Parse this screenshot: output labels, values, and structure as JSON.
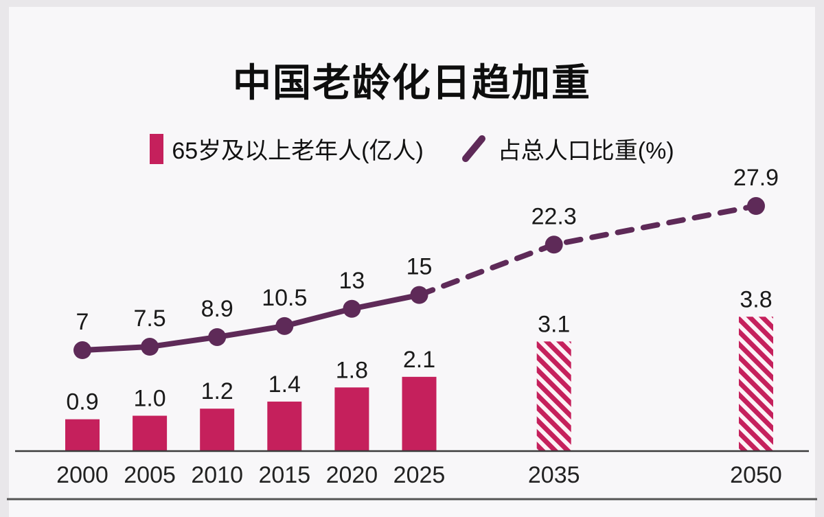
{
  "chart_data": {
    "type": "bar",
    "title": "中国老龄化日趋加重",
    "categories": [
      "2000",
      "2005",
      "2010",
      "2015",
      "2020",
      "2025",
      "2035",
      "2050"
    ],
    "x_years": [
      2000,
      2005,
      2010,
      2015,
      2020,
      2025,
      2035,
      2050
    ],
    "series": [
      {
        "name": "65岁及以上老年人(亿人)",
        "type": "bar",
        "values": [
          0.9,
          1.0,
          1.2,
          1.4,
          1.8,
          2.1,
          3.1,
          3.8
        ],
        "labels": [
          "0.9",
          "1.0",
          "1.2",
          "1.4",
          "1.8",
          "2.1",
          "3.1",
          "3.8"
        ],
        "projected_from_index": 6
      },
      {
        "name": "占总人口比重(%)",
        "type": "line",
        "values": [
          7,
          7.5,
          8.9,
          10.5,
          13,
          15,
          22.3,
          27.9
        ],
        "labels": [
          "7",
          "7.5",
          "8.9",
          "10.5",
          "13",
          "15",
          "22.3",
          "27.9"
        ],
        "projected_from_index": 5
      }
    ],
    "legend_position": "top",
    "grid": false,
    "notes": "2035 and 2050 are projections shown with hatched bars and dashed line"
  },
  "colors": {
    "bar": "#c5205c",
    "hatch_bg": "#fcf2f6",
    "line": "#5e2a58",
    "value_text": "#1a1a1a",
    "tick_text": "#222222",
    "axis": "#3b3b3b",
    "bottom_rule": "#555555",
    "card_bg": "#f8f7f9",
    "outer_bg": "#e9e7ea"
  }
}
